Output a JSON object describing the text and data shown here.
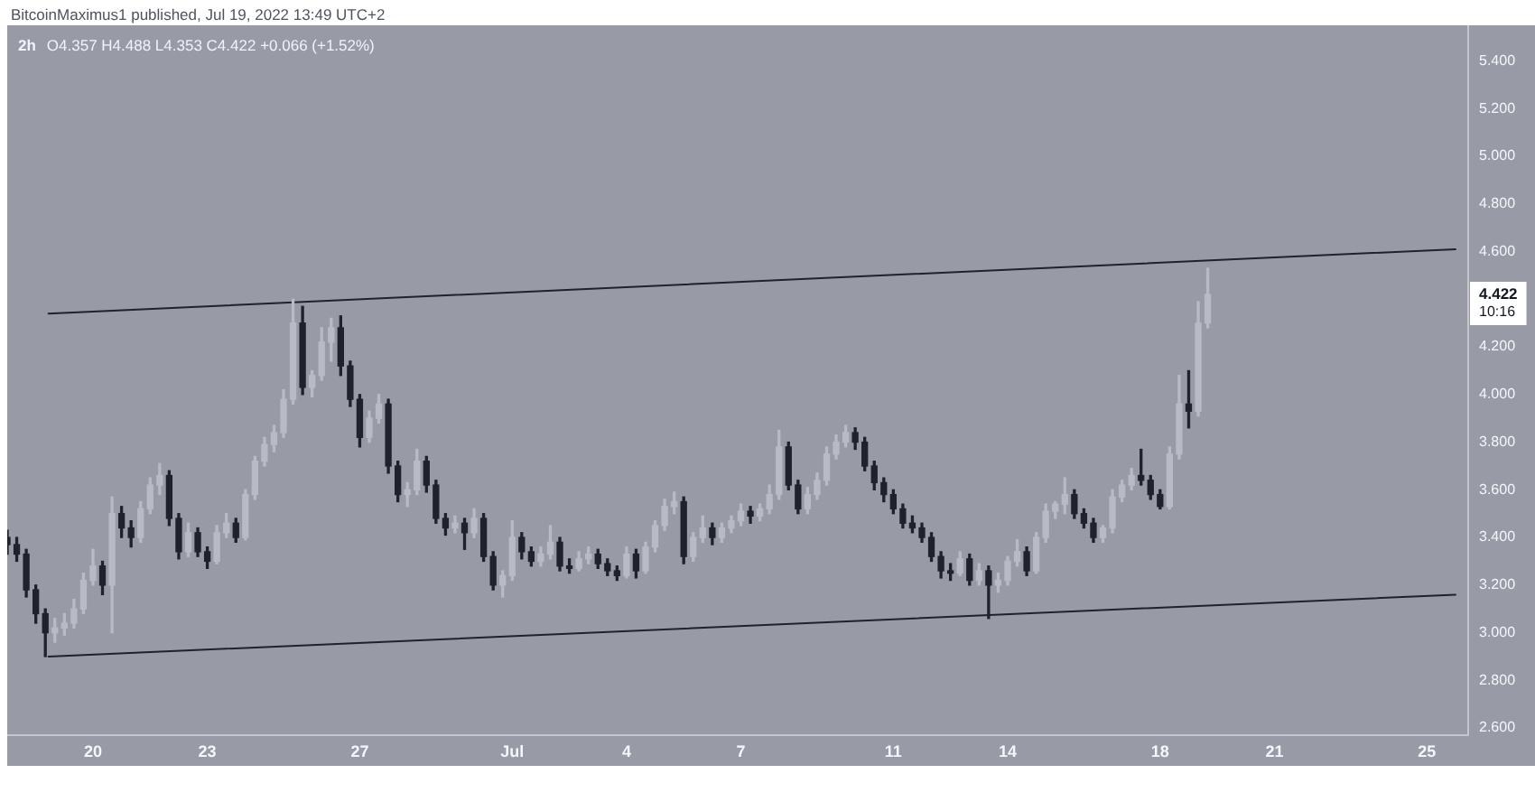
{
  "chart_data": {
    "type": "candlestick",
    "title": "2h",
    "subtitle": "O4.357 H4.488 L4.353 C4.422 +0.066 (+1.52%)",
    "annotations": [
      "BitcoinMaximus1 published, Jul 19, 2022 13:49 UTC+2",
      "4.422",
      "10:16"
    ],
    "x": [
      "2022-06-17T18:00",
      "2022-06-18T00:00",
      "2022-06-18T06:00",
      "2022-06-18T12:00",
      "2022-06-18T18:00",
      "2022-06-19T00:00",
      "2022-06-19T06:00",
      "2022-06-19T12:00",
      "2022-06-19T18:00",
      "2022-06-20T00:00",
      "2022-06-20T06:00",
      "2022-06-20T12:00",
      "2022-06-20T18:00",
      "2022-06-21T00:00",
      "2022-06-21T06:00",
      "2022-06-21T12:00",
      "2022-06-21T18:00",
      "2022-06-22T00:00",
      "2022-06-22T06:00",
      "2022-06-22T12:00",
      "2022-06-22T18:00",
      "2022-06-23T00:00",
      "2022-06-23T06:00",
      "2022-06-23T12:00",
      "2022-06-23T18:00",
      "2022-06-24T00:00",
      "2022-06-24T06:00",
      "2022-06-24T12:00",
      "2022-06-24T18:00",
      "2022-06-25T00:00",
      "2022-06-25T06:00",
      "2022-06-25T12:00",
      "2022-06-25T18:00",
      "2022-06-26T00:00",
      "2022-06-26T06:00",
      "2022-06-26T12:00",
      "2022-06-26T18:00",
      "2022-06-27T00:00",
      "2022-06-27T06:00",
      "2022-06-27T12:00",
      "2022-06-27T18:00",
      "2022-06-28T00:00",
      "2022-06-28T06:00",
      "2022-06-28T12:00",
      "2022-06-28T18:00",
      "2022-06-29T00:00",
      "2022-06-29T06:00",
      "2022-06-29T12:00",
      "2022-06-29T18:00",
      "2022-06-30T00:00",
      "2022-06-30T06:00",
      "2022-06-30T12:00",
      "2022-06-30T18:00",
      "2022-07-01T00:00",
      "2022-07-01T06:00",
      "2022-07-01T12:00",
      "2022-07-01T18:00",
      "2022-07-02T00:00",
      "2022-07-02T06:00",
      "2022-07-02T12:00",
      "2022-07-02T18:00",
      "2022-07-03T00:00",
      "2022-07-03T06:00",
      "2022-07-03T12:00",
      "2022-07-03T18:00",
      "2022-07-04T00:00",
      "2022-07-04T06:00",
      "2022-07-04T12:00",
      "2022-07-04T18:00",
      "2022-07-05T00:00",
      "2022-07-05T06:00",
      "2022-07-05T12:00",
      "2022-07-05T18:00",
      "2022-07-06T00:00",
      "2022-07-06T06:00",
      "2022-07-06T12:00",
      "2022-07-06T18:00",
      "2022-07-07T00:00",
      "2022-07-07T06:00",
      "2022-07-07T12:00",
      "2022-07-07T18:00",
      "2022-07-08T00:00",
      "2022-07-08T06:00",
      "2022-07-08T12:00",
      "2022-07-08T18:00",
      "2022-07-09T00:00",
      "2022-07-09T06:00",
      "2022-07-09T12:00",
      "2022-07-09T18:00",
      "2022-07-10T00:00",
      "2022-07-10T06:00",
      "2022-07-10T12:00",
      "2022-07-10T18:00",
      "2022-07-11T00:00",
      "2022-07-11T06:00",
      "2022-07-11T12:00",
      "2022-07-11T18:00",
      "2022-07-12T00:00",
      "2022-07-12T06:00",
      "2022-07-12T12:00",
      "2022-07-12T18:00",
      "2022-07-13T00:00",
      "2022-07-13T06:00",
      "2022-07-13T12:00",
      "2022-07-13T18:00",
      "2022-07-14T00:00",
      "2022-07-14T06:00",
      "2022-07-14T12:00",
      "2022-07-14T18:00",
      "2022-07-15T00:00",
      "2022-07-15T06:00",
      "2022-07-15T12:00",
      "2022-07-15T18:00",
      "2022-07-16T00:00",
      "2022-07-16T06:00",
      "2022-07-16T12:00",
      "2022-07-16T18:00",
      "2022-07-17T00:00",
      "2022-07-17T06:00",
      "2022-07-17T12:00",
      "2022-07-17T18:00",
      "2022-07-18T00:00",
      "2022-07-18T06:00",
      "2022-07-18T12:00",
      "2022-07-18T18:00",
      "2022-07-19T00:00",
      "2022-07-19T06:00"
    ],
    "ohlc": [
      [
        3.4,
        3.43,
        3.33,
        3.37
      ],
      [
        3.37,
        3.4,
        3.3,
        3.33
      ],
      [
        3.33,
        3.35,
        3.15,
        3.18
      ],
      [
        3.18,
        3.2,
        3.04,
        3.08
      ],
      [
        3.08,
        3.1,
        2.9,
        3.0
      ],
      [
        3.0,
        3.06,
        2.96,
        3.02
      ],
      [
        3.02,
        3.08,
        2.99,
        3.04
      ],
      [
        3.04,
        3.14,
        3.02,
        3.1
      ],
      [
        3.1,
        3.25,
        3.08,
        3.22
      ],
      [
        3.22,
        3.35,
        3.2,
        3.28
      ],
      [
        3.28,
        3.3,
        3.16,
        3.2
      ],
      [
        3.2,
        3.57,
        3.0,
        3.5
      ],
      [
        3.5,
        3.53,
        3.4,
        3.44
      ],
      [
        3.44,
        3.47,
        3.36,
        3.4
      ],
      [
        3.4,
        3.55,
        3.38,
        3.52
      ],
      [
        3.52,
        3.65,
        3.5,
        3.62
      ],
      [
        3.62,
        3.71,
        3.58,
        3.66
      ],
      [
        3.66,
        3.68,
        3.45,
        3.48
      ],
      [
        3.48,
        3.5,
        3.31,
        3.34
      ],
      [
        3.34,
        3.46,
        3.32,
        3.42
      ],
      [
        3.42,
        3.44,
        3.32,
        3.34
      ],
      [
        3.34,
        3.36,
        3.27,
        3.3
      ],
      [
        3.3,
        3.45,
        3.29,
        3.42
      ],
      [
        3.42,
        3.5,
        3.4,
        3.46
      ],
      [
        3.46,
        3.48,
        3.38,
        3.4
      ],
      [
        3.4,
        3.6,
        3.39,
        3.58
      ],
      [
        3.58,
        3.74,
        3.56,
        3.72
      ],
      [
        3.72,
        3.82,
        3.7,
        3.79
      ],
      [
        3.79,
        3.87,
        3.76,
        3.84
      ],
      [
        3.84,
        4.02,
        3.82,
        3.98
      ],
      [
        3.98,
        4.4,
        3.96,
        4.3
      ],
      [
        4.3,
        4.37,
        4.0,
        4.03
      ],
      [
        4.03,
        4.1,
        3.99,
        4.08
      ],
      [
        4.08,
        4.28,
        4.06,
        4.22
      ],
      [
        4.22,
        4.32,
        4.14,
        4.28
      ],
      [
        4.28,
        4.33,
        4.08,
        4.12
      ],
      [
        4.12,
        4.14,
        3.95,
        3.98
      ],
      [
        3.98,
        4.0,
        3.78,
        3.82
      ],
      [
        3.82,
        3.93,
        3.8,
        3.9
      ],
      [
        3.9,
        4.0,
        3.88,
        3.96
      ],
      [
        3.96,
        3.98,
        3.67,
        3.7
      ],
      [
        3.7,
        3.72,
        3.55,
        3.58
      ],
      [
        3.58,
        3.63,
        3.53,
        3.6
      ],
      [
        3.6,
        3.77,
        3.58,
        3.72
      ],
      [
        3.72,
        3.74,
        3.59,
        3.62
      ],
      [
        3.62,
        3.64,
        3.46,
        3.48
      ],
      [
        3.48,
        3.5,
        3.41,
        3.44
      ],
      [
        3.44,
        3.49,
        3.42,
        3.46
      ],
      [
        3.46,
        3.48,
        3.35,
        3.42
      ],
      [
        3.42,
        3.52,
        3.4,
        3.48
      ],
      [
        3.48,
        3.5,
        3.3,
        3.32
      ],
      [
        3.32,
        3.34,
        3.18,
        3.2
      ],
      [
        3.2,
        3.26,
        3.15,
        3.24
      ],
      [
        3.24,
        3.47,
        3.22,
        3.4
      ],
      [
        3.4,
        3.42,
        3.31,
        3.34
      ],
      [
        3.34,
        3.36,
        3.28,
        3.3
      ],
      [
        3.3,
        3.36,
        3.28,
        3.33
      ],
      [
        3.33,
        3.45,
        3.31,
        3.38
      ],
      [
        3.38,
        3.4,
        3.26,
        3.28
      ],
      [
        3.28,
        3.31,
        3.25,
        3.27
      ],
      [
        3.27,
        3.34,
        3.26,
        3.31
      ],
      [
        3.31,
        3.36,
        3.29,
        3.33
      ],
      [
        3.33,
        3.35,
        3.27,
        3.29
      ],
      [
        3.29,
        3.31,
        3.24,
        3.26
      ],
      [
        3.26,
        3.28,
        3.22,
        3.24
      ],
      [
        3.24,
        3.36,
        3.23,
        3.33
      ],
      [
        3.33,
        3.35,
        3.23,
        3.26
      ],
      [
        3.26,
        3.38,
        3.25,
        3.36
      ],
      [
        3.36,
        3.47,
        3.34,
        3.45
      ],
      [
        3.45,
        3.56,
        3.43,
        3.53
      ],
      [
        3.53,
        3.59,
        3.5,
        3.55
      ],
      [
        3.55,
        3.57,
        3.29,
        3.32
      ],
      [
        3.32,
        3.42,
        3.3,
        3.4
      ],
      [
        3.4,
        3.49,
        3.38,
        3.44
      ],
      [
        3.44,
        3.46,
        3.37,
        3.4
      ],
      [
        3.4,
        3.46,
        3.38,
        3.44
      ],
      [
        3.44,
        3.49,
        3.42,
        3.47
      ],
      [
        3.47,
        3.54,
        3.45,
        3.51
      ],
      [
        3.51,
        3.53,
        3.46,
        3.49
      ],
      [
        3.49,
        3.54,
        3.47,
        3.52
      ],
      [
        3.52,
        3.62,
        3.5,
        3.58
      ],
      [
        3.58,
        3.85,
        3.56,
        3.78
      ],
      [
        3.78,
        3.8,
        3.6,
        3.62
      ],
      [
        3.62,
        3.64,
        3.5,
        3.52
      ],
      [
        3.52,
        3.61,
        3.5,
        3.58
      ],
      [
        3.58,
        3.67,
        3.56,
        3.64
      ],
      [
        3.64,
        3.78,
        3.62,
        3.75
      ],
      [
        3.75,
        3.83,
        3.73,
        3.8
      ],
      [
        3.8,
        3.87,
        3.78,
        3.84
      ],
      [
        3.84,
        3.86,
        3.77,
        3.8
      ],
      [
        3.8,
        3.82,
        3.68,
        3.7
      ],
      [
        3.7,
        3.72,
        3.6,
        3.63
      ],
      [
        3.63,
        3.65,
        3.55,
        3.58
      ],
      [
        3.58,
        3.6,
        3.5,
        3.52
      ],
      [
        3.52,
        3.54,
        3.44,
        3.46
      ],
      [
        3.46,
        3.49,
        3.42,
        3.44
      ],
      [
        3.44,
        3.46,
        3.38,
        3.4
      ],
      [
        3.4,
        3.42,
        3.3,
        3.32
      ],
      [
        3.32,
        3.34,
        3.23,
        3.26
      ],
      [
        3.26,
        3.29,
        3.22,
        3.25
      ],
      [
        3.25,
        3.34,
        3.24,
        3.31
      ],
      [
        3.31,
        3.33,
        3.2,
        3.22
      ],
      [
        3.22,
        3.29,
        3.2,
        3.26
      ],
      [
        3.26,
        3.28,
        3.06,
        3.2
      ],
      [
        3.2,
        3.25,
        3.17,
        3.22
      ],
      [
        3.22,
        3.32,
        3.2,
        3.3
      ],
      [
        3.3,
        3.39,
        3.28,
        3.34
      ],
      [
        3.34,
        3.36,
        3.24,
        3.26
      ],
      [
        3.26,
        3.42,
        3.25,
        3.4
      ],
      [
        3.4,
        3.54,
        3.38,
        3.51
      ],
      [
        3.51,
        3.55,
        3.48,
        3.54
      ],
      [
        3.54,
        3.65,
        3.5,
        3.58
      ],
      [
        3.58,
        3.6,
        3.48,
        3.5
      ],
      [
        3.5,
        3.52,
        3.44,
        3.46
      ],
      [
        3.46,
        3.48,
        3.38,
        3.4
      ],
      [
        3.4,
        3.45,
        3.38,
        3.44
      ],
      [
        3.44,
        3.6,
        3.42,
        3.57
      ],
      [
        3.57,
        3.64,
        3.55,
        3.62
      ],
      [
        3.62,
        3.69,
        3.6,
        3.66
      ],
      [
        3.66,
        3.77,
        3.62,
        3.64
      ],
      [
        3.64,
        3.66,
        3.56,
        3.58
      ],
      [
        3.58,
        3.6,
        3.52,
        3.53
      ],
      [
        3.53,
        3.78,
        3.52,
        3.75
      ],
      [
        3.75,
        4.08,
        3.73,
        3.96
      ],
      [
        3.96,
        4.1,
        3.86,
        3.93
      ],
      [
        3.93,
        4.39,
        3.91,
        4.3
      ],
      [
        4.3,
        4.53,
        4.28,
        4.42
      ]
    ],
    "colors": [
      "#1e222d",
      "#1e222d",
      "#1e222d",
      "#1e222d",
      "#1e222d",
      "#b8bbc3",
      "#b8bbc3",
      "#b8bbc3",
      "#b8bbc3",
      "#b8bbc3",
      "#1e222d",
      "#b8bbc3",
      "#1e222d",
      "#1e222d",
      "#b8bbc3",
      "#b8bbc3",
      "#b8bbc3",
      "#1e222d",
      "#1e222d",
      "#b8bbc3",
      "#1e222d",
      "#1e222d",
      "#b8bbc3",
      "#b8bbc3",
      "#1e222d",
      "#b8bbc3",
      "#b8bbc3",
      "#b8bbc3",
      "#b8bbc3",
      "#b8bbc3",
      "#b8bbc3",
      "#1e222d",
      "#b8bbc3",
      "#b8bbc3",
      "#b8bbc3",
      "#1e222d",
      "#1e222d",
      "#1e222d",
      "#b8bbc3",
      "#b8bbc3",
      "#1e222d",
      "#1e222d",
      "#b8bbc3",
      "#b8bbc3",
      "#1e222d",
      "#1e222d",
      "#1e222d",
      "#b8bbc3",
      "#1e222d",
      "#b8bbc3",
      "#1e222d",
      "#1e222d",
      "#b8bbc3",
      "#b8bbc3",
      "#1e222d",
      "#1e222d",
      "#b8bbc3",
      "#b8bbc3",
      "#1e222d",
      "#1e222d",
      "#b8bbc3",
      "#b8bbc3",
      "#1e222d",
      "#1e222d",
      "#1e222d",
      "#b8bbc3",
      "#1e222d",
      "#b8bbc3",
      "#b8bbc3",
      "#b8bbc3",
      "#b8bbc3",
      "#1e222d",
      "#b8bbc3",
      "#b8bbc3",
      "#1e222d",
      "#b8bbc3",
      "#b8bbc3",
      "#b8bbc3",
      "#1e222d",
      "#b8bbc3",
      "#b8bbc3",
      "#b8bbc3",
      "#1e222d",
      "#1e222d",
      "#b8bbc3",
      "#b8bbc3",
      "#b8bbc3",
      "#b8bbc3",
      "#b8bbc3",
      "#1e222d",
      "#1e222d",
      "#1e222d",
      "#1e222d",
      "#1e222d",
      "#1e222d",
      "#1e222d",
      "#1e222d",
      "#1e222d",
      "#1e222d",
      "#1e222d",
      "#b8bbc3",
      "#1e222d",
      "#b8bbc3",
      "#1e222d",
      "#b8bbc3",
      "#b8bbc3",
      "#b8bbc3",
      "#1e222d",
      "#b8bbc3",
      "#b8bbc3",
      "#b8bbc3",
      "#b8bbc3",
      "#1e222d",
      "#1e222d",
      "#1e222d",
      "#b8bbc3",
      "#b8bbc3",
      "#b8bbc3",
      "#b8bbc3",
      "#1e222d",
      "#1e222d",
      "#1e222d",
      "#b8bbc3",
      "#b8bbc3",
      "#1e222d",
      "#b8bbc3",
      "#b8bbc3"
    ],
    "series": [
      {
        "type": "line",
        "x": [
          "2022-06-18T20:00",
          "2022-07-25T18:00"
        ],
        "values": [
          4.34,
          4.61
        ],
        "color": "#1e222d"
      },
      {
        "type": "line",
        "x": [
          "2022-06-18T20:00",
          "2022-07-25T18:00"
        ],
        "values": [
          2.9,
          3.16
        ],
        "color": "#1e222d"
      }
    ],
    "marker": "none",
    "xlim": [
      "2022-06-17T18:00",
      "2022-07-26T02:00"
    ],
    "xticks": [
      {
        "value": "2022-06-20",
        "label": "20"
      },
      {
        "value": "2022-06-23",
        "label": "23"
      },
      {
        "value": "2022-06-27",
        "label": "27"
      },
      {
        "value": "2022-07-01",
        "label": "Jul"
      },
      {
        "value": "2022-07-04",
        "label": "4"
      },
      {
        "value": "2022-07-07",
        "label": "7"
      },
      {
        "value": "2022-07-11",
        "label": "11"
      },
      {
        "value": "2022-07-14",
        "label": "14"
      },
      {
        "value": "2022-07-18",
        "label": "18"
      },
      {
        "value": "2022-07-21",
        "label": "21"
      },
      {
        "value": "2022-07-25",
        "label": "25"
      }
    ],
    "ylim": [
      2.57,
      5.55
    ],
    "yticks": [
      {
        "value": 2.6,
        "label": "2.600"
      },
      {
        "value": 2.8,
        "label": "2.800"
      },
      {
        "value": 3,
        "label": "3.000"
      },
      {
        "value": 3.2,
        "label": "3.200"
      },
      {
        "value": 3.4,
        "label": "3.400"
      },
      {
        "value": 3.6,
        "label": "3.600"
      },
      {
        "value": 3.8,
        "label": "3.800"
      },
      {
        "value": 4,
        "label": "4.000"
      },
      {
        "value": 4.2,
        "label": "4.200"
      },
      {
        "value": 4.6,
        "label": "4.600"
      },
      {
        "value": 4.8,
        "label": "4.800"
      },
      {
        "value": 5,
        "label": "5.000"
      },
      {
        "value": 5.2,
        "label": "5.200"
      },
      {
        "value": 5.4,
        "label": "5.400"
      }
    ]
  }
}
